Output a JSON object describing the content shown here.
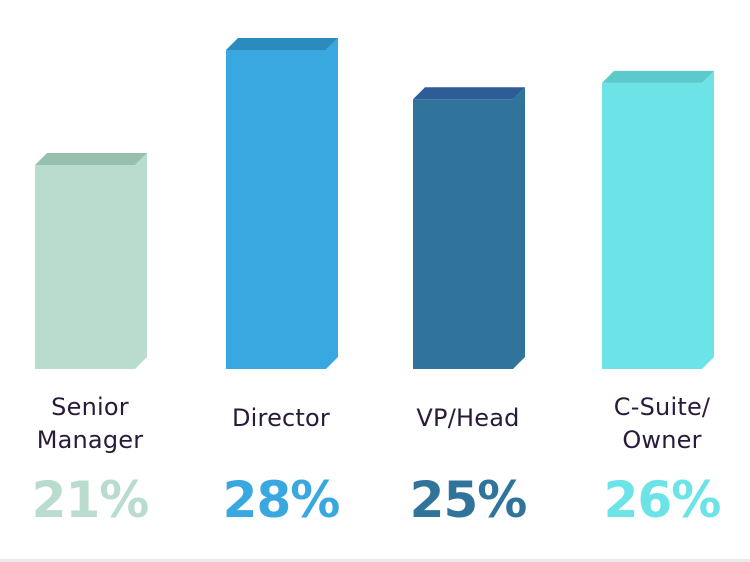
{
  "chart_data": {
    "type": "bar",
    "style": "3d-columns",
    "title": "",
    "xlabel": "",
    "ylabel": "",
    "grid": false,
    "legend": "none",
    "categories": [
      "Senior Manager",
      "Director",
      "VP/Head",
      "C-Suite/ Owner"
    ],
    "values": [
      21,
      28,
      25,
      26
    ],
    "value_labels": [
      "21%",
      "28%",
      "25%",
      "26%"
    ],
    "unit": "%"
  },
  "bars": [
    {
      "label_line1": "Senior",
      "label_line2": "Manager",
      "value_label": "21%",
      "front_color": "#b9dccf",
      "top_color": "#97bfae",
      "text_color": "#b9dccf"
    },
    {
      "label_line1": "Director",
      "label_line2": "",
      "value_label": "28%",
      "front_color": "#39a7e0",
      "top_color": "#2b8bbd",
      "text_color": "#39a7e0"
    },
    {
      "label_line1": "VP/Head",
      "label_line2": "",
      "value_label": "25%",
      "front_color": "#30749c",
      "top_color": "#2d5c96",
      "text_color": "#30749c"
    },
    {
      "label_line1": "C-Suite/",
      "label_line2": "Owner",
      "value_label": "26%",
      "front_color": "#6be3e7",
      "top_color": "#5cc9cb",
      "text_color": "#6be3e7"
    }
  ],
  "colors": {
    "label_text": "#2a1a3a",
    "background": "#ffffff"
  }
}
